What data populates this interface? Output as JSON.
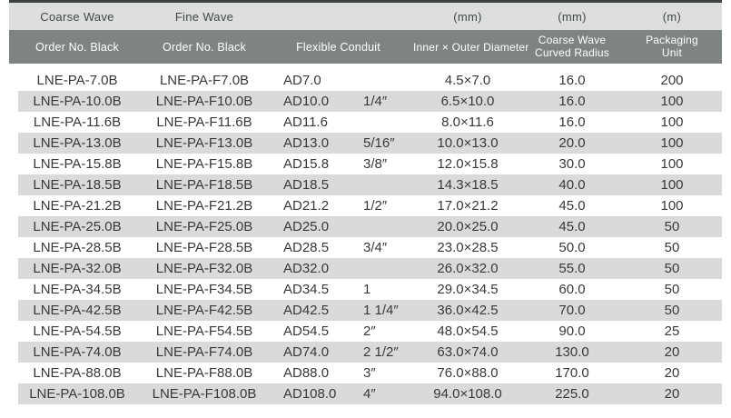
{
  "table": {
    "colors": {
      "top_border": "#3d4242",
      "header_light_bg": "#dcdfde",
      "header_light_text": "#414747",
      "header_dark_bg": "#7e8484",
      "header_dark_text": "#ffffff",
      "stripe_bg": "#d9dbda",
      "body_text": "#383838"
    },
    "group_header": {
      "coarse_wave": "Coarse Wave",
      "fine_wave": "Fine Wave",
      "conduit": "",
      "diameter_unit": "(mm)",
      "radius_unit": "(mm)",
      "packaging_unit": "(m)"
    },
    "column_header": {
      "coarse_order": "Order No. Black",
      "fine_order": "Order No. Black",
      "conduit": "Flexible Conduit",
      "diameter": "Inner × Outer Diameter",
      "radius": "Coarse Wave Curved Radius",
      "packaging": "Packaging Unit"
    },
    "rows": [
      {
        "coarse_order": "LNE-PA-7.0B",
        "fine_order": "LNE-PA-F7.0B",
        "conduit": "AD7.0",
        "inch": "",
        "diameter": "4.5×7.0",
        "radius": "16.0",
        "packaging": "200"
      },
      {
        "coarse_order": "LNE-PA-10.0B",
        "fine_order": "LNE-PA-F10.0B",
        "conduit": "AD10.0",
        "inch": "1/4″",
        "diameter": "6.5×10.0",
        "radius": "16.0",
        "packaging": "100"
      },
      {
        "coarse_order": "LNE-PA-11.6B",
        "fine_order": "LNE-PA-F11.6B",
        "conduit": "AD11.6",
        "inch": "",
        "diameter": "8.0×11.6",
        "radius": "16.0",
        "packaging": "100"
      },
      {
        "coarse_order": "LNE-PA-13.0B",
        "fine_order": "LNE-PA-F13.0B",
        "conduit": "AD13.0",
        "inch": "5/16″",
        "diameter": "10.0×13.0",
        "radius": "20.0",
        "packaging": "100"
      },
      {
        "coarse_order": "LNE-PA-15.8B",
        "fine_order": "LNE-PA-F15.8B",
        "conduit": "AD15.8",
        "inch": "3/8″",
        "diameter": "12.0×15.8",
        "radius": "30.0",
        "packaging": "100"
      },
      {
        "coarse_order": "LNE-PA-18.5B",
        "fine_order": "LNE-PA-F18.5B",
        "conduit": "AD18.5",
        "inch": "",
        "diameter": "14.3×18.5",
        "radius": "40.0",
        "packaging": "100"
      },
      {
        "coarse_order": "LNE-PA-21.2B",
        "fine_order": "LNE-PA-F21.2B",
        "conduit": "AD21.2",
        "inch": "1/2″",
        "diameter": "17.0×21.2",
        "radius": "45.0",
        "packaging": "100"
      },
      {
        "coarse_order": "LNE-PA-25.0B",
        "fine_order": "LNE-PA-F25.0B",
        "conduit": "AD25.0",
        "inch": "",
        "diameter": "20.0×25.0",
        "radius": "45.0",
        "packaging": "50"
      },
      {
        "coarse_order": "LNE-PA-28.5B",
        "fine_order": "LNE-PA-F28.5B",
        "conduit": "AD28.5",
        "inch": "3/4″",
        "diameter": "23.0×28.5",
        "radius": "50.0",
        "packaging": "50"
      },
      {
        "coarse_order": "LNE-PA-32.0B",
        "fine_order": "LNE-PA-F32.0B",
        "conduit": "AD32.0",
        "inch": "",
        "diameter": "26.0×32.0",
        "radius": "55.0",
        "packaging": "50"
      },
      {
        "coarse_order": "LNE-PA-34.5B",
        "fine_order": "LNE-PA-F34.5B",
        "conduit": "AD34.5",
        "inch": "1",
        "diameter": "29.0×34.5",
        "radius": "60.0",
        "packaging": "50"
      },
      {
        "coarse_order": "LNE-PA-42.5B",
        "fine_order": "LNE-PA-F42.5B",
        "conduit": "AD42.5",
        "inch": "1 1/4″",
        "diameter": "36.0×42.5",
        "radius": "70.0",
        "packaging": "50"
      },
      {
        "coarse_order": "LNE-PA-54.5B",
        "fine_order": "LNE-PA-F54.5B",
        "conduit": "AD54.5",
        "inch": "2″",
        "diameter": "48.0×54.5",
        "radius": "90.0",
        "packaging": "25"
      },
      {
        "coarse_order": "LNE-PA-74.0B",
        "fine_order": "LNE-PA-F74.0B",
        "conduit": "AD74.0",
        "inch": "2 1/2″",
        "diameter": "63.0×74.0",
        "radius": "130.0",
        "packaging": "20"
      },
      {
        "coarse_order": "LNE-PA-88.0B",
        "fine_order": "LNE-PA-F88.0B",
        "conduit": "AD88.0",
        "inch": "3″",
        "diameter": "76.0×88.0",
        "radius": "170.0",
        "packaging": "20"
      },
      {
        "coarse_order": "LNE-PA-108.0B",
        "fine_order": "LNE-PA-F108.0B",
        "conduit": "AD108.0",
        "inch": "4″",
        "diameter": "94.0×108.0",
        "radius": "225.0",
        "packaging": "20"
      }
    ]
  }
}
